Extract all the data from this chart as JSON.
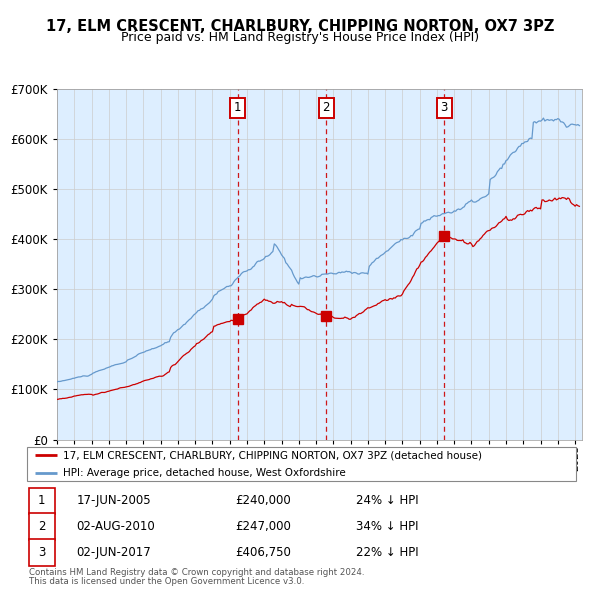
{
  "title": "17, ELM CRESCENT, CHARLBURY, CHIPPING NORTON, OX7 3PZ",
  "subtitle": "Price paid vs. HM Land Registry's House Price Index (HPI)",
  "legend_line1": "17, ELM CRESCENT, CHARLBURY, CHIPPING NORTON, OX7 3PZ (detached house)",
  "legend_line2": "HPI: Average price, detached house, West Oxfordshire",
  "footer1": "Contains HM Land Registry data © Crown copyright and database right 2024.",
  "footer2": "This data is licensed under the Open Government Licence v3.0.",
  "transactions": [
    {
      "num": 1,
      "date": "17-JUN-2005",
      "price": "£240,000",
      "pct": "24% ↓ HPI",
      "year_x": 2005.46
    },
    {
      "num": 2,
      "date": "02-AUG-2010",
      "price": "£247,000",
      "pct": "34% ↓ HPI",
      "year_x": 2010.58
    },
    {
      "num": 3,
      "date": "02-JUN-2017",
      "price": "£406,750",
      "pct": "22% ↓ HPI",
      "year_x": 2017.42
    }
  ],
  "dot_prices": [
    240000,
    247000,
    406750
  ],
  "red_color": "#cc0000",
  "blue_color": "#6699cc",
  "background_color": "#ddeeff",
  "grid_color": "#cccccc",
  "ylim": [
    0,
    700000
  ],
  "xlim_start": 1995.0,
  "xlim_end": 2025.4,
  "hpi_anchors_x": [
    1995.0,
    1997.0,
    1999.0,
    2001.5,
    2004.0,
    2007.5,
    2009.0,
    2013.0,
    2016.0,
    2020.0,
    2022.5,
    2025.3
  ],
  "hpi_anchors_y": [
    115000,
    130000,
    155000,
    195000,
    280000,
    375000,
    310000,
    330000,
    420000,
    490000,
    600000,
    625000
  ],
  "red_anchors_x": [
    1995.0,
    1997.0,
    1999.0,
    2001.5,
    2004.0,
    2005.46,
    2007.0,
    2008.5,
    2010.58,
    2012.0,
    2015.0,
    2017.42,
    2019.0,
    2021.0,
    2023.0,
    2025.3
  ],
  "red_anchors_y": [
    80000,
    90000,
    105000,
    135000,
    215000,
    240000,
    280000,
    265000,
    247000,
    240000,
    290000,
    406750,
    390000,
    445000,
    460000,
    465000
  ]
}
